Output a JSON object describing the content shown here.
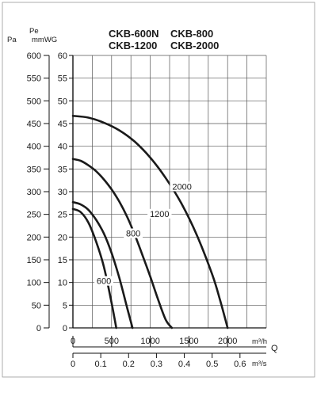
{
  "chart_data": {
    "type": "line",
    "title_lines": [
      [
        "CKB-600N",
        "CKB-800"
      ],
      [
        "CKB-1200",
        "CKB-2000"
      ]
    ],
    "y_axis_pa": {
      "label": "Pa",
      "ticks": [
        0,
        50,
        100,
        150,
        200,
        250,
        300,
        350,
        400,
        450,
        500,
        550,
        600
      ],
      "ylim": [
        0,
        600
      ]
    },
    "y_axis_mmwg": {
      "label_top": "Pe",
      "label": "mmWG",
      "ticks": [
        0,
        5,
        10,
        15,
        20,
        25,
        30,
        35,
        40,
        45,
        50,
        55,
        60
      ]
    },
    "x_axis_m3h": {
      "unit": "m³/h",
      "ticks": [
        0,
        500,
        1000,
        1500,
        2000
      ],
      "xlim": [
        0,
        2500
      ]
    },
    "x_axis_m3s": {
      "unit": "m³/s",
      "ticks": [
        "0",
        "0.1",
        "0.2",
        "0.3",
        "0.4",
        "0.5",
        "0.6"
      ],
      "tick_values": [
        0,
        0.1,
        0.2,
        0.3,
        0.4,
        0.5,
        0.6
      ]
    },
    "q_label": "Q",
    "grid": true,
    "series": [
      {
        "name": "600",
        "x": [
          0,
          100,
          200,
          300,
          400,
          500,
          560
        ],
        "y": [
          262,
          255,
          232,
          190,
          135,
          55,
          0
        ]
      },
      {
        "name": "800",
        "x": [
          0,
          100,
          200,
          300,
          400,
          500,
          600,
          700,
          770
        ],
        "y": [
          277,
          272,
          260,
          238,
          208,
          165,
          110,
          45,
          0
        ]
      },
      {
        "name": "1200",
        "x": [
          0,
          100,
          200,
          300,
          400,
          500,
          600,
          700,
          800,
          900,
          1000,
          1100,
          1200,
          1280
        ],
        "y": [
          372,
          368,
          358,
          345,
          327,
          305,
          278,
          245,
          205,
          160,
          113,
          63,
          18,
          0
        ]
      },
      {
        "name": "2000",
        "x": [
          0,
          200,
          400,
          600,
          800,
          1000,
          1200,
          1400,
          1600,
          1800,
          1900,
          2000
        ],
        "y": [
          467,
          463,
          452,
          435,
          410,
          375,
          330,
          275,
          205,
          118,
          63,
          0
        ]
      }
    ]
  }
}
